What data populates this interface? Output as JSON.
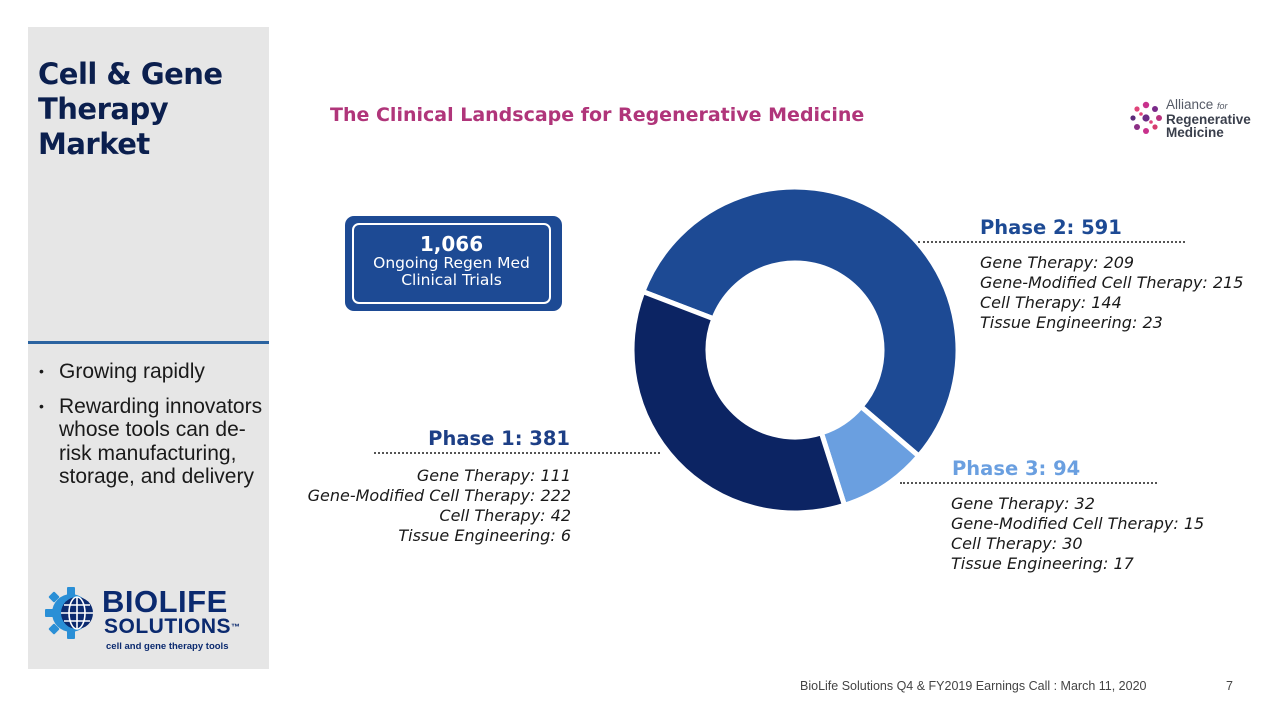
{
  "sidebar": {
    "title": "Cell & Gene Therapy Market",
    "bullets": [
      "Growing rapidly",
      "Rewarding innovators whose tools can de-risk manufacturing, storage, and delivery"
    ],
    "logo": {
      "word1": "BIOLIFE",
      "word2": "SOLUTIONS",
      "mark": "™",
      "tagline": "cell and gene therapy tools"
    }
  },
  "chart_title": "The Clinical Landscape for Regenerative Medicine",
  "partner_logo": {
    "line1": "Alliance",
    "for": "for",
    "line2": "Regenerative",
    "line3": "Medicine"
  },
  "total": {
    "value": "1,066",
    "label": "Ongoing Regen Med Clinical Trials"
  },
  "chart_data": {
    "type": "pie",
    "title": "The Clinical Landscape for Regenerative Medicine",
    "total": 1066,
    "series": [
      {
        "name": "Phase 1",
        "label": "Phase 1: 381",
        "value": 381,
        "color": "#0c2463",
        "breakdown": [
          {
            "label": "Gene Therapy: 111",
            "value": 111
          },
          {
            "label": "Gene-Modified Cell Therapy: 222",
            "value": 222
          },
          {
            "label": "Cell Therapy: 42",
            "value": 42
          },
          {
            "label": "Tissue Engineering: 6",
            "value": 6
          }
        ]
      },
      {
        "name": "Phase 2",
        "label": "Phase 2: 591",
        "value": 591,
        "color": "#1d4a94",
        "breakdown": [
          {
            "label": "Gene Therapy: 209",
            "value": 209
          },
          {
            "label": "Gene-Modified Cell Therapy: 215",
            "value": 215
          },
          {
            "label": "Cell Therapy: 144",
            "value": 144
          },
          {
            "label": "Tissue Engineering: 23",
            "value": 23
          }
        ]
      },
      {
        "name": "Phase 3",
        "label": "Phase 3: 94",
        "value": 94,
        "color": "#6a9fe0",
        "breakdown": [
          {
            "label": "Gene Therapy: 32",
            "value": 32
          },
          {
            "label": "Gene-Modified Cell Therapy: 15",
            "value": 15
          },
          {
            "label": "Cell Therapy: 30",
            "value": 30
          },
          {
            "label": "Tissue Engineering: 17",
            "value": 17
          }
        ]
      }
    ]
  },
  "footer": {
    "text": "BioLife Solutions Q4 & FY2019 Earnings Call : March 11, 2020",
    "page": "7"
  }
}
